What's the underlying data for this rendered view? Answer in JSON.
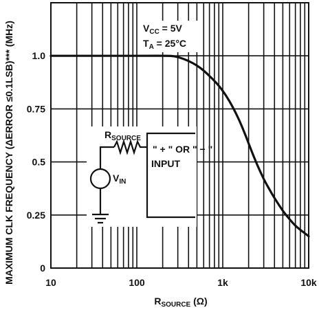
{
  "chart_data": {
    "type": "line",
    "title": "",
    "xlabel": {
      "main": "R",
      "sub": "SOURCE",
      "unit": " (Ω)"
    },
    "ylabel": "MAXIMUM CLK FREQUENCY (ΔERROR ≤0.1LSB)*** (MHz)",
    "x_scale": "log",
    "xlim": [
      10,
      10000
    ],
    "ylim": [
      0,
      1.25
    ],
    "x_ticks": [
      {
        "value": 10,
        "label": "10"
      },
      {
        "value": 100,
        "label": "100"
      },
      {
        "value": 1000,
        "label": "1k"
      },
      {
        "value": 10000,
        "label": "10k"
      }
    ],
    "y_ticks": [
      {
        "value": 0,
        "label": "0"
      },
      {
        "value": 0.25,
        "label": "0.25"
      },
      {
        "value": 0.5,
        "label": "0.5"
      },
      {
        "value": 0.75,
        "label": "0.75"
      },
      {
        "value": 1.0,
        "label": "1.0"
      }
    ],
    "grid": true,
    "series": [
      {
        "x": [
          10,
          100,
          200,
          270,
          350,
          450,
          560,
          700,
          850,
          1000,
          1200,
          1500,
          1800,
          2100,
          2500,
          3000,
          3500,
          4000,
          5000,
          6000,
          7000,
          8000,
          10000
        ],
        "y": [
          1.0,
          1.0,
          1.0,
          0.998,
          0.985,
          0.965,
          0.94,
          0.905,
          0.87,
          0.835,
          0.785,
          0.71,
          0.635,
          0.565,
          0.49,
          0.42,
          0.37,
          0.33,
          0.27,
          0.23,
          0.2,
          0.18,
          0.15
        ]
      }
    ],
    "annotations": {
      "vcc": {
        "main": "V",
        "sub": "CC",
        "rest": " = 5V"
      },
      "ta": {
        "main": "T",
        "sub": "A",
        "rest": " = 25°C"
      }
    }
  },
  "inset": {
    "rsource": {
      "main": "R",
      "sub": "SOURCE"
    },
    "vin": {
      "main": "V",
      "sub": "IN"
    },
    "input_line1": "\" + \" OR \" − \"",
    "input_line2": "INPUT"
  }
}
